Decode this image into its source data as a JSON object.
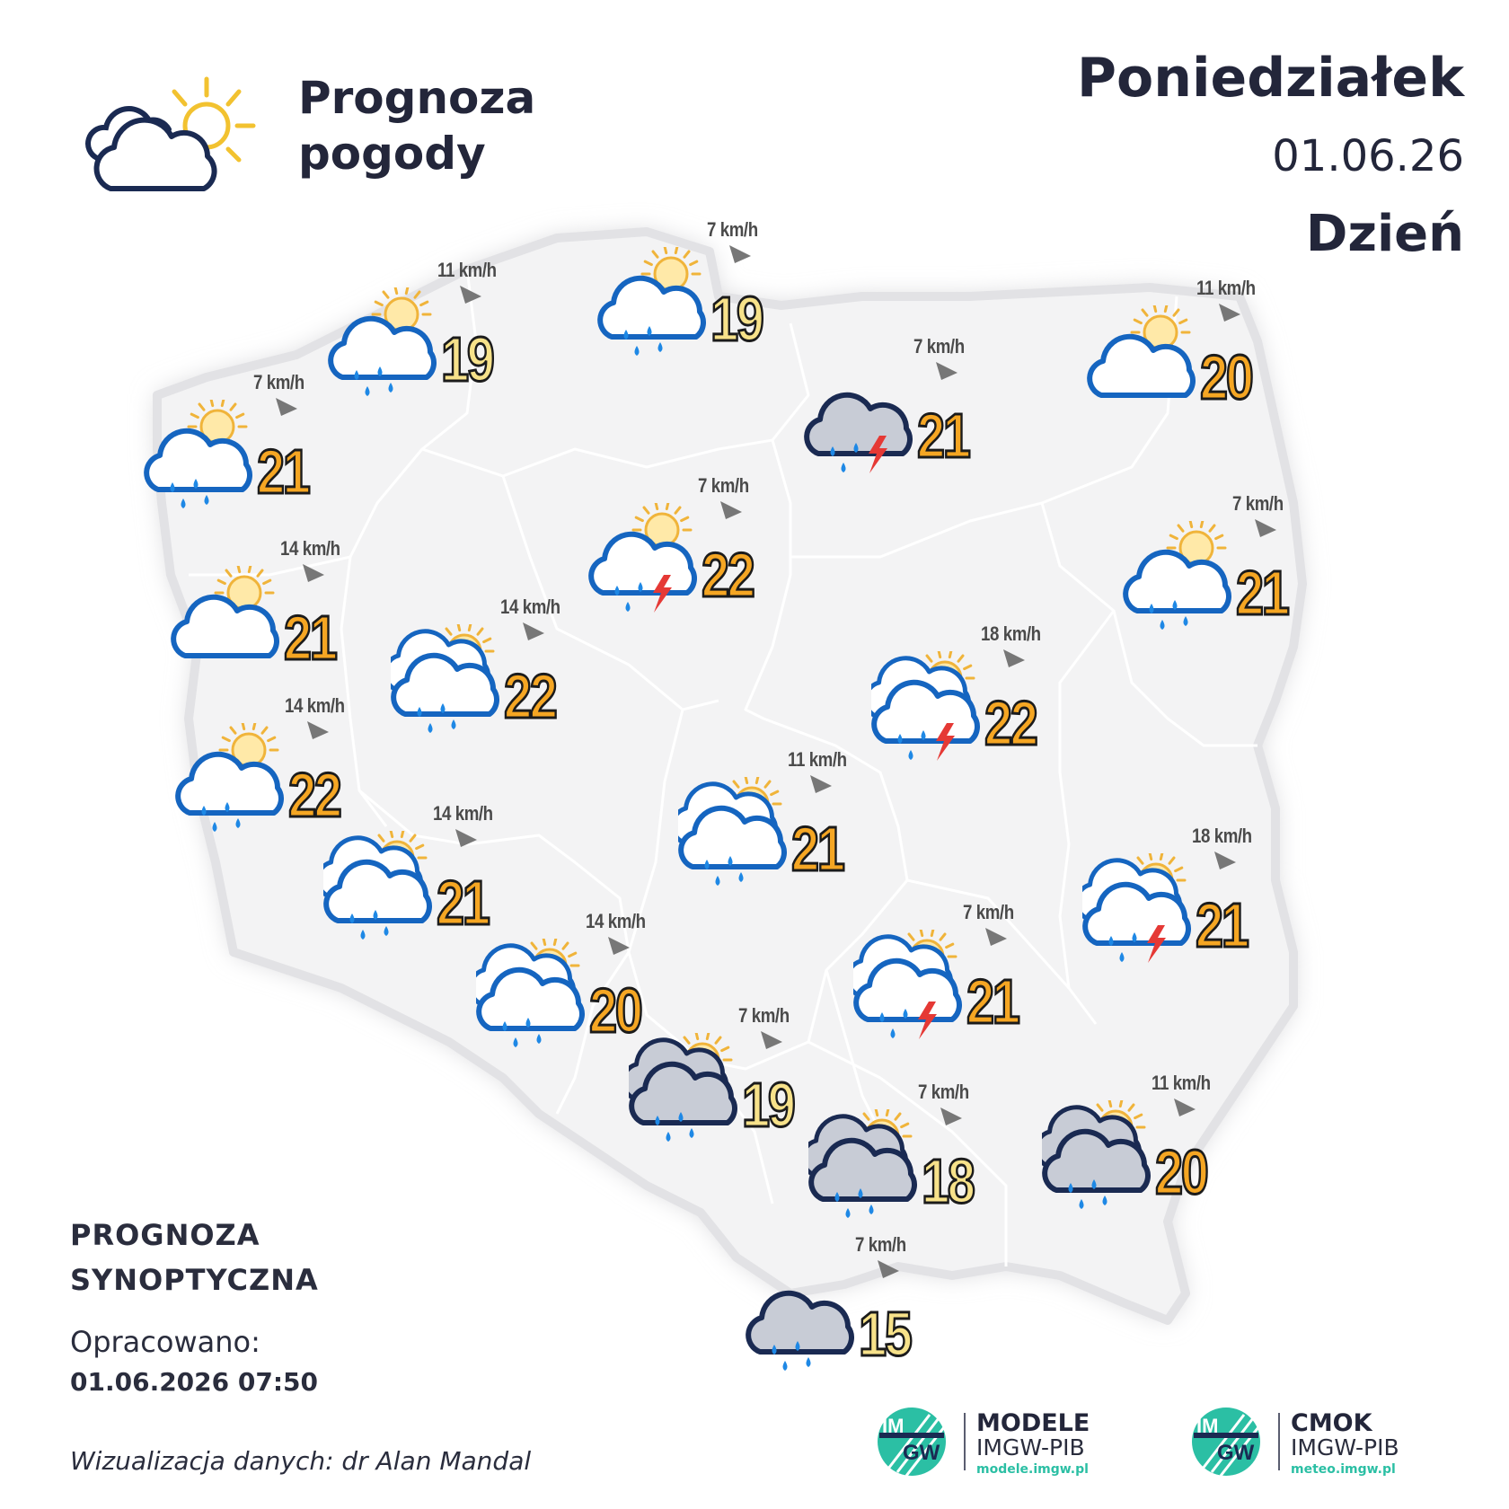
{
  "header": {
    "title_line1": "Prognoza",
    "title_line2": "pogody",
    "day_name": "Poniedziałek",
    "date": "01.06.26",
    "day_part": "Dzień"
  },
  "footer": {
    "synoptic_line1": "PROGNOZA",
    "synoptic_line2": "SYNOPTYCZNA",
    "prepared_label": "Opracowano:",
    "prepared_datetime": "01.06.2026 07:50",
    "credit": "Wizualizacja danych: dr Alan Mandal"
  },
  "logos": [
    {
      "mark": "IMGW",
      "title": "MODELE",
      "subtitle": "IMGW-PIB",
      "url": "modele.imgw.pl"
    },
    {
      "mark": "IMGW",
      "title": "CMOK",
      "subtitle": "IMGW-PIB",
      "url": "meteo.imgw.pl"
    }
  ],
  "colors": {
    "map_fill": "#f3f3f4",
    "map_border": "#d9d9dc",
    "temp_warm": "#f5a623",
    "temp_cool": "#f7e28a",
    "cloud_outline": "#1565c0",
    "cloud_outline_dark": "#1a2a52",
    "sun": "#f0b43a",
    "rain": "#1e88e5",
    "lightning": "#e53935",
    "wind_arrow": "#777777"
  },
  "stations": [
    {
      "icon": "partly-cloudy-rain",
      "temp": "19",
      "wind": "11 km/h",
      "tone": "cool"
    },
    {
      "icon": "partly-cloudy-rain",
      "temp": "19",
      "wind": "7 km/h",
      "tone": "cool"
    },
    {
      "icon": "partly-cloudy",
      "temp": "20",
      "wind": "11 km/h",
      "tone": "warm"
    },
    {
      "icon": "partly-cloudy-rain",
      "temp": "21",
      "wind": "7 km/h",
      "tone": "warm"
    },
    {
      "icon": "dark-cloud-storm",
      "temp": "21",
      "wind": "7 km/h",
      "tone": "warm"
    },
    {
      "icon": "partly-cloudy-storm",
      "temp": "22",
      "wind": "7 km/h",
      "tone": "warm"
    },
    {
      "icon": "partly-cloudy-rain",
      "temp": "21",
      "wind": "7 km/h",
      "tone": "warm"
    },
    {
      "icon": "partly-cloudy",
      "temp": "21",
      "wind": "14 km/h",
      "tone": "warm"
    },
    {
      "icon": "double-cloud-rain",
      "temp": "22",
      "wind": "14 km/h",
      "tone": "warm"
    },
    {
      "icon": "double-cloud-storm",
      "temp": "22",
      "wind": "18 km/h",
      "tone": "warm"
    },
    {
      "icon": "partly-cloudy-rain",
      "temp": "22",
      "wind": "14 km/h",
      "tone": "warm"
    },
    {
      "icon": "double-cloud-rain",
      "temp": "21",
      "wind": "11 km/h",
      "tone": "warm"
    },
    {
      "icon": "double-cloud-rain",
      "temp": "21",
      "wind": "14 km/h",
      "tone": "warm"
    },
    {
      "icon": "double-cloud-storm",
      "temp": "21",
      "wind": "18 km/h",
      "tone": "warm"
    },
    {
      "icon": "double-cloud-rain",
      "temp": "20",
      "wind": "14 km/h",
      "tone": "warm"
    },
    {
      "icon": "double-cloud-storm",
      "temp": "21",
      "wind": "7 km/h",
      "tone": "warm"
    },
    {
      "icon": "dark-double-cloud-rain",
      "temp": "19",
      "wind": "7 km/h",
      "tone": "cool"
    },
    {
      "icon": "dark-double-cloud-rain",
      "temp": "18",
      "wind": "7 km/h",
      "tone": "cool"
    },
    {
      "icon": "dark-double-cloud-rain",
      "temp": "20",
      "wind": "11 km/h",
      "tone": "warm"
    },
    {
      "icon": "dark-cloud-rain",
      "temp": "15",
      "wind": "7 km/h",
      "tone": "cool"
    }
  ]
}
